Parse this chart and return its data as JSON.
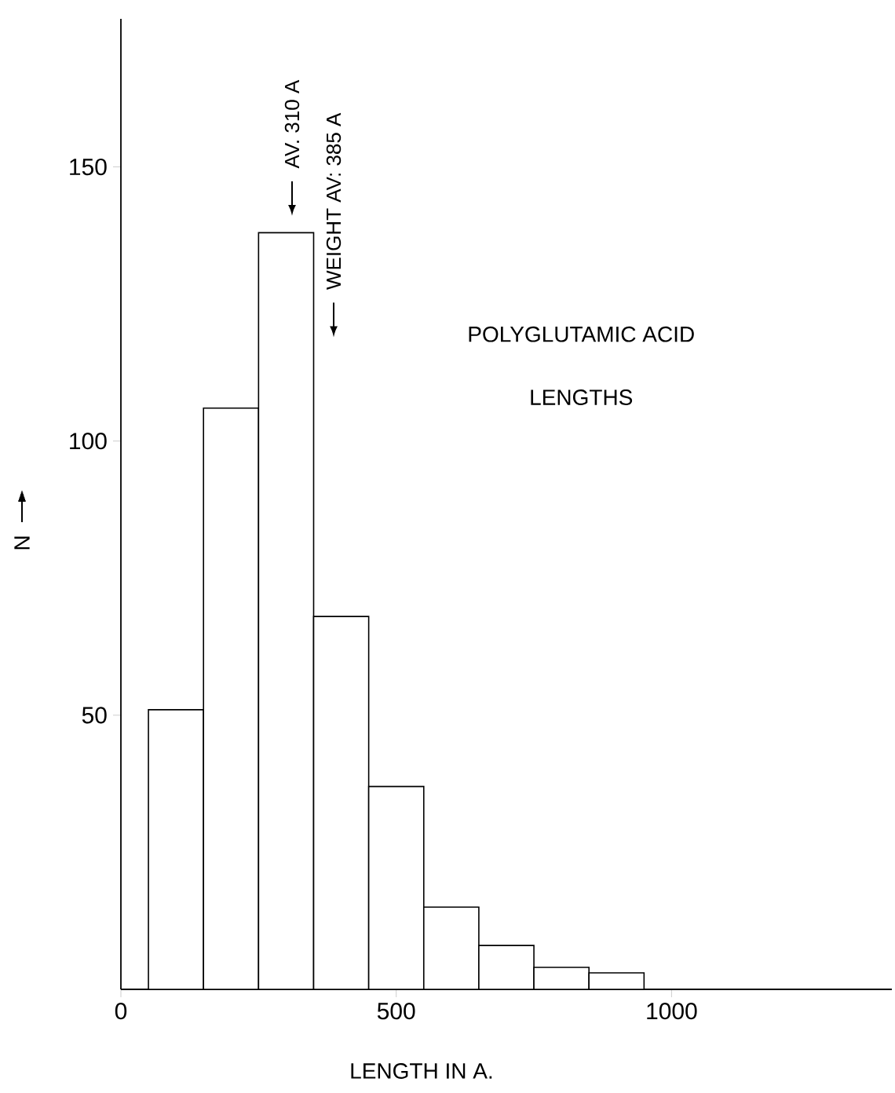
{
  "chart_data": {
    "type": "histogram",
    "title": "POLYGLUTAMIC ACID",
    "subtitle": "LENGTHS",
    "xlabel": "LENGTH IN A.",
    "ylabel": "N",
    "bins": [
      50,
      150,
      250,
      350,
      450,
      550,
      650,
      750,
      850,
      950
    ],
    "values": [
      51,
      106,
      138,
      68,
      37,
      15,
      8,
      4,
      3
    ],
    "xlim": [
      0,
      1400
    ],
    "ylim": [
      0,
      177
    ],
    "xticks": [
      0,
      500,
      1000
    ],
    "yticks": [
      50,
      100,
      150
    ],
    "annotations": [
      "AV. 310 A",
      "WEIGHT AV: 385 A"
    ]
  }
}
